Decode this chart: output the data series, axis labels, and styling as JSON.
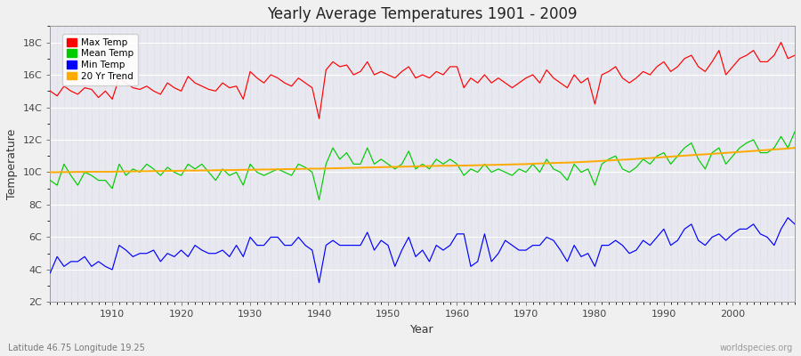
{
  "title": "Yearly Average Temperatures 1901 - 2009",
  "xlabel": "Year",
  "ylabel": "Temperature",
  "lat_lon_label": "Latitude 46.75 Longitude 19.25",
  "source_label": "worldspecies.org",
  "fig_bg_color": "#f0f0f0",
  "plot_bg_color": "#e8e8f0",
  "grid_color": "#ffffff",
  "ylim": [
    2,
    19
  ],
  "yticks": [
    2,
    4,
    6,
    8,
    10,
    12,
    14,
    16,
    18
  ],
  "ytick_labels": [
    "2C",
    "4C",
    "6C",
    "8C",
    "10C",
    "12C",
    "14C",
    "16C",
    "18C"
  ],
  "xlim": [
    1901,
    2009
  ],
  "xticks": [
    1910,
    1920,
    1930,
    1940,
    1950,
    1960,
    1970,
    1980,
    1990,
    2000
  ],
  "colors": {
    "max": "#ff0000",
    "mean": "#00cc00",
    "min": "#0000ff",
    "trend": "#ffaa00"
  },
  "legend_labels": [
    "Max Temp",
    "Mean Temp",
    "Min Temp",
    "20 Yr Trend"
  ],
  "legend_colors": [
    "#ff0000",
    "#00cc00",
    "#0000ff",
    "#ffaa00"
  ],
  "years": [
    1901,
    1902,
    1903,
    1904,
    1905,
    1906,
    1907,
    1908,
    1909,
    1910,
    1911,
    1912,
    1913,
    1914,
    1915,
    1916,
    1917,
    1918,
    1919,
    1920,
    1921,
    1922,
    1923,
    1924,
    1925,
    1926,
    1927,
    1928,
    1929,
    1930,
    1931,
    1932,
    1933,
    1934,
    1935,
    1936,
    1937,
    1938,
    1939,
    1940,
    1941,
    1942,
    1943,
    1944,
    1945,
    1946,
    1947,
    1948,
    1949,
    1950,
    1951,
    1952,
    1953,
    1954,
    1955,
    1956,
    1957,
    1958,
    1959,
    1960,
    1961,
    1962,
    1963,
    1964,
    1965,
    1966,
    1967,
    1968,
    1969,
    1970,
    1971,
    1972,
    1973,
    1974,
    1975,
    1976,
    1977,
    1978,
    1979,
    1980,
    1981,
    1982,
    1983,
    1984,
    1985,
    1986,
    1987,
    1988,
    1989,
    1990,
    1991,
    1992,
    1993,
    1994,
    1995,
    1996,
    1997,
    1998,
    1999,
    2000,
    2001,
    2002,
    2003,
    2004,
    2005,
    2006,
    2007,
    2008,
    2009
  ],
  "max_temp": [
    15.0,
    14.7,
    15.3,
    15.0,
    14.8,
    15.2,
    15.1,
    14.6,
    15.0,
    14.5,
    15.8,
    15.5,
    15.2,
    15.1,
    15.3,
    15.0,
    14.8,
    15.5,
    15.2,
    15.0,
    15.9,
    15.5,
    15.3,
    15.1,
    15.0,
    15.5,
    15.2,
    15.3,
    14.5,
    16.2,
    15.8,
    15.5,
    16.0,
    15.8,
    15.5,
    15.3,
    15.8,
    15.5,
    15.2,
    13.3,
    16.3,
    16.8,
    16.5,
    16.6,
    16.0,
    16.2,
    16.8,
    16.0,
    16.2,
    16.0,
    15.8,
    16.2,
    16.5,
    15.8,
    16.0,
    15.8,
    16.2,
    16.0,
    16.5,
    16.5,
    15.2,
    15.8,
    15.5,
    16.0,
    15.5,
    15.8,
    15.5,
    15.2,
    15.5,
    15.8,
    16.0,
    15.5,
    16.3,
    15.8,
    15.5,
    15.2,
    16.0,
    15.5,
    15.8,
    14.2,
    16.0,
    16.2,
    16.5,
    15.8,
    15.5,
    15.8,
    16.2,
    16.0,
    16.5,
    16.8,
    16.2,
    16.5,
    17.0,
    17.2,
    16.5,
    16.2,
    16.8,
    17.5,
    16.0,
    16.5,
    17.0,
    17.2,
    17.5,
    16.8,
    16.8,
    17.2,
    18.0,
    17.0,
    17.2
  ],
  "mean_temp": [
    9.5,
    9.2,
    10.5,
    9.8,
    9.2,
    10.0,
    9.8,
    9.5,
    9.5,
    9.0,
    10.5,
    9.8,
    10.2,
    10.0,
    10.5,
    10.2,
    9.8,
    10.3,
    10.0,
    9.8,
    10.5,
    10.2,
    10.5,
    10.0,
    9.5,
    10.2,
    9.8,
    10.0,
    9.2,
    10.5,
    10.0,
    9.8,
    10.0,
    10.2,
    10.0,
    9.8,
    10.5,
    10.3,
    10.0,
    8.3,
    10.5,
    11.5,
    10.8,
    11.2,
    10.5,
    10.5,
    11.5,
    10.5,
    10.8,
    10.5,
    10.2,
    10.5,
    11.3,
    10.2,
    10.5,
    10.2,
    10.8,
    10.5,
    10.8,
    10.5,
    9.8,
    10.2,
    10.0,
    10.5,
    10.0,
    10.2,
    10.0,
    9.8,
    10.2,
    10.0,
    10.5,
    10.0,
    10.8,
    10.2,
    10.0,
    9.5,
    10.5,
    10.0,
    10.2,
    9.2,
    10.5,
    10.8,
    11.0,
    10.2,
    10.0,
    10.3,
    10.8,
    10.5,
    11.0,
    11.2,
    10.5,
    11.0,
    11.5,
    11.8,
    10.8,
    10.2,
    11.2,
    11.5,
    10.5,
    11.0,
    11.5,
    11.8,
    12.0,
    11.2,
    11.2,
    11.5,
    12.2,
    11.5,
    12.5
  ],
  "min_temp": [
    3.8,
    4.8,
    4.2,
    4.5,
    4.5,
    4.8,
    4.2,
    4.5,
    4.2,
    4.0,
    5.5,
    5.2,
    4.8,
    5.0,
    5.0,
    5.2,
    4.5,
    5.0,
    4.8,
    5.2,
    4.8,
    5.5,
    5.2,
    5.0,
    5.0,
    5.2,
    4.8,
    5.5,
    4.8,
    6.0,
    5.5,
    5.5,
    6.0,
    6.0,
    5.5,
    5.5,
    6.0,
    5.5,
    5.2,
    3.2,
    5.5,
    5.8,
    5.5,
    5.5,
    5.5,
    5.5,
    6.3,
    5.2,
    5.8,
    5.5,
    4.2,
    5.2,
    6.0,
    4.8,
    5.2,
    4.5,
    5.5,
    5.2,
    5.5,
    6.2,
    6.2,
    4.2,
    4.5,
    6.2,
    4.5,
    5.0,
    5.8,
    5.5,
    5.2,
    5.2,
    5.5,
    5.5,
    6.0,
    5.8,
    5.2,
    4.5,
    5.5,
    4.8,
    5.0,
    4.2,
    5.5,
    5.5,
    5.8,
    5.5,
    5.0,
    5.2,
    5.8,
    5.5,
    6.0,
    6.5,
    5.5,
    5.8,
    6.5,
    6.8,
    5.8,
    5.5,
    6.0,
    6.2,
    5.8,
    6.2,
    6.5,
    6.5,
    6.8,
    6.2,
    6.0,
    5.5,
    6.5,
    7.2,
    6.8
  ],
  "trend": [
    10.0,
    10.0,
    10.01,
    10.01,
    10.02,
    10.02,
    10.03,
    10.03,
    10.03,
    10.03,
    10.04,
    10.05,
    10.05,
    10.06,
    10.06,
    10.07,
    10.07,
    10.08,
    10.08,
    10.09,
    10.1,
    10.1,
    10.11,
    10.11,
    10.12,
    10.13,
    10.13,
    10.14,
    10.15,
    10.15,
    10.16,
    10.17,
    10.17,
    10.18,
    10.19,
    10.19,
    10.2,
    10.21,
    10.22,
    10.22,
    10.23,
    10.24,
    10.25,
    10.26,
    10.27,
    10.28,
    10.29,
    10.3,
    10.31,
    10.32,
    10.33,
    10.34,
    10.35,
    10.36,
    10.37,
    10.38,
    10.39,
    10.4,
    10.4,
    10.41,
    10.41,
    10.42,
    10.43,
    10.44,
    10.45,
    10.46,
    10.47,
    10.48,
    10.49,
    10.5,
    10.52,
    10.54,
    10.55,
    10.57,
    10.58,
    10.59,
    10.61,
    10.63,
    10.65,
    10.67,
    10.7,
    10.72,
    10.75,
    10.77,
    10.79,
    10.82,
    10.85,
    10.87,
    10.9,
    10.93,
    10.96,
    10.99,
    11.02,
    11.05,
    11.08,
    11.1,
    11.13,
    11.16,
    11.19,
    11.22,
    11.25,
    11.28,
    11.31,
    11.34,
    11.37,
    11.4,
    11.43,
    11.46,
    11.5
  ]
}
